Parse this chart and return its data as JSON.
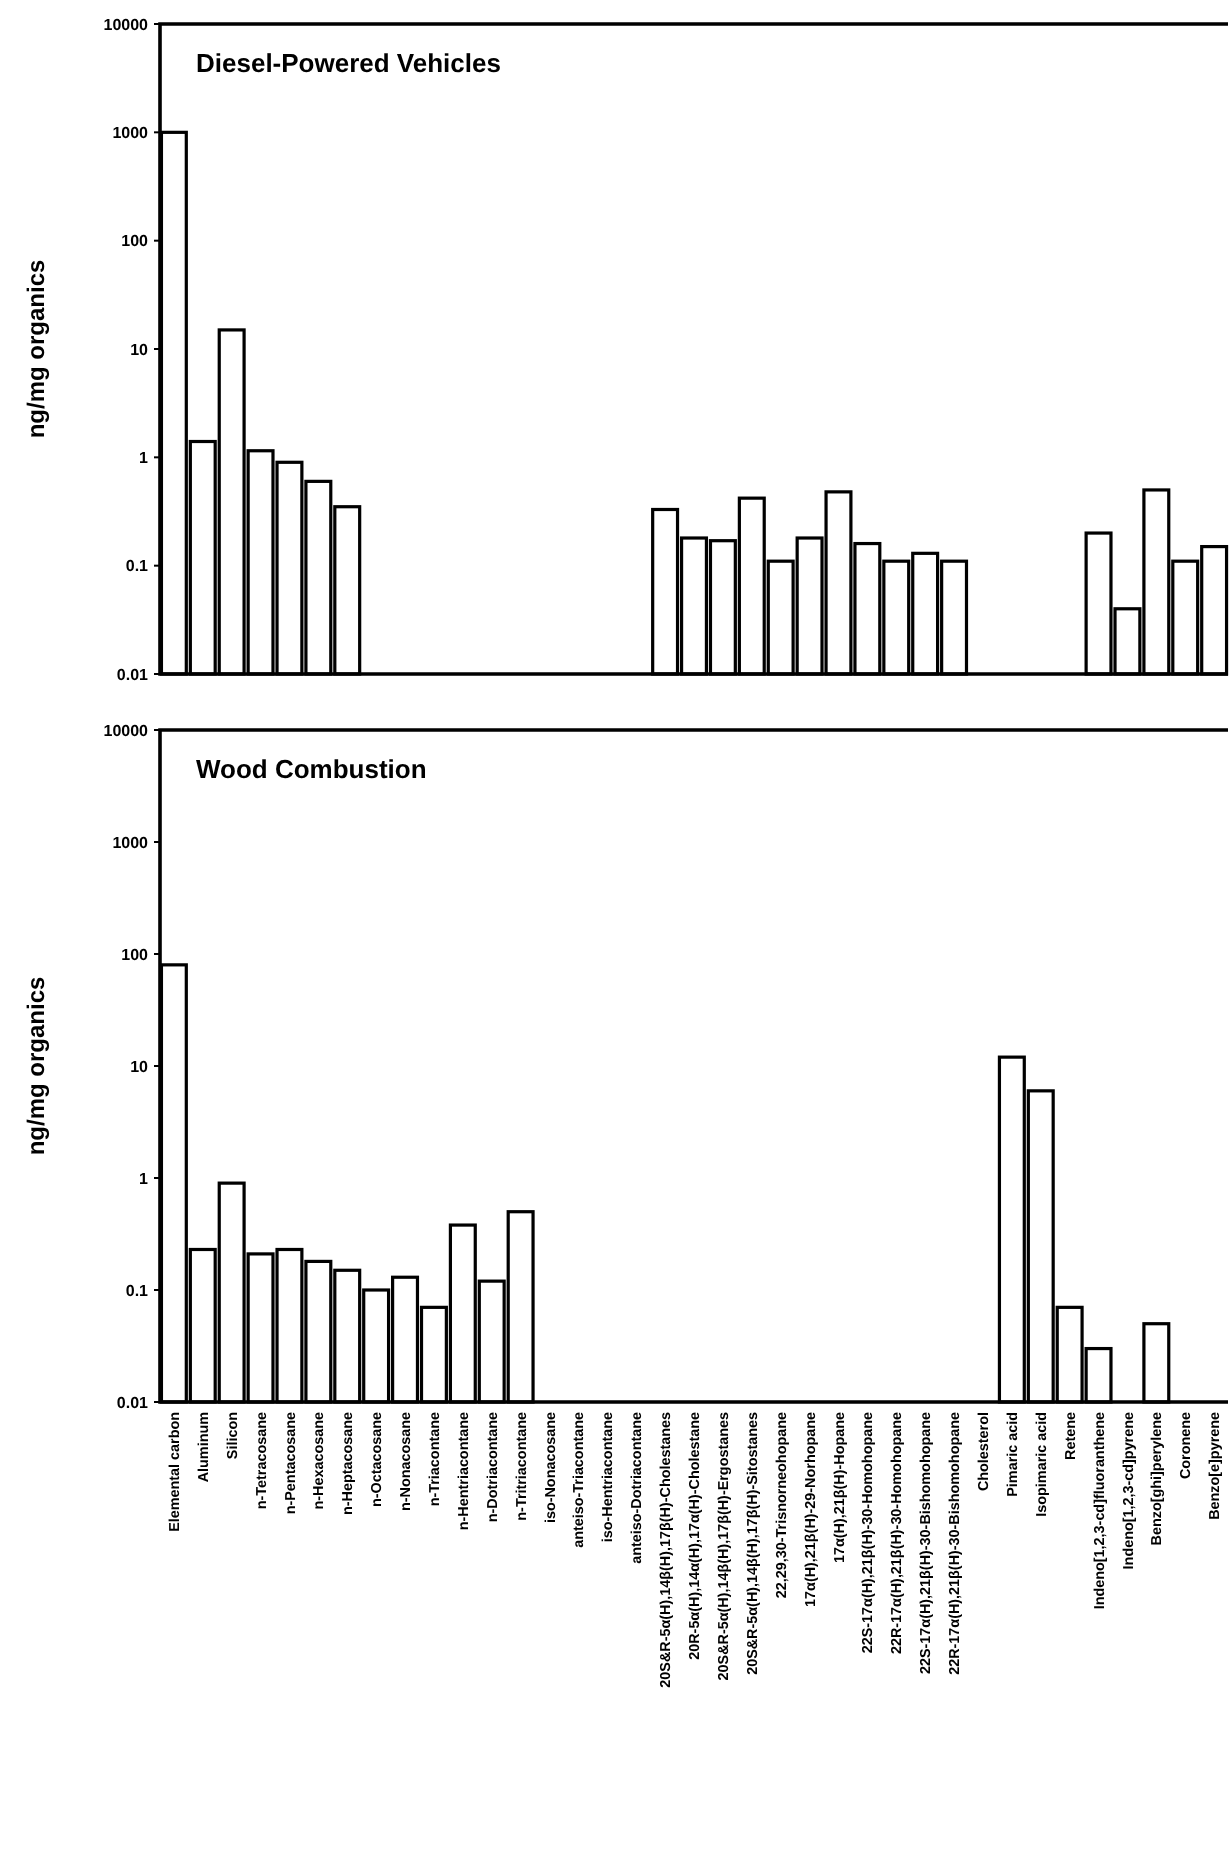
{
  "chart_data": [
    {
      "type": "bar",
      "title": "Diesel-Powered Vehicles",
      "ylabel": "ng/mg organics",
      "log": "y",
      "ylim": [
        0.01,
        10000
      ],
      "yticks": [
        0.01,
        0.1,
        1,
        10,
        100,
        1000,
        10000
      ],
      "color": "#ffffff",
      "categories": [
        null,
        null,
        null,
        null,
        null,
        null,
        null,
        null,
        null,
        null,
        null,
        null,
        null,
        null,
        null,
        null,
        null,
        null,
        null,
        null,
        null,
        null,
        null,
        null,
        null,
        null,
        null,
        null,
        null,
        null,
        null,
        null,
        null,
        null,
        null,
        null,
        null
      ],
      "values": [
        1000,
        1.4,
        15,
        1.15,
        0.9,
        0.6,
        0.35,
        null,
        null,
        null,
        null,
        null,
        null,
        null,
        null,
        null,
        null,
        0.33,
        0.18,
        0.17,
        0.42,
        0.11,
        0.18,
        0.48,
        0.16,
        0.11,
        0.13,
        0.11,
        null,
        null,
        null,
        null,
        0.2,
        0.04,
        0.5,
        0.11,
        0.15
      ]
    },
    {
      "type": "bar",
      "title": "Wood Combustion",
      "ylabel": "ng/mg organics",
      "log": "y",
      "ylim": [
        0.01,
        10000
      ],
      "yticks": [
        0.01,
        0.1,
        1,
        10,
        100,
        1000,
        10000
      ],
      "color": "#ffffff",
      "categories": [
        "Elemental carbon",
        "Aluminum",
        "Silicon",
        "n-Tetracosane",
        "n-Pentacosane",
        "n-Hexacosane",
        "n-Heptacosane",
        "n-Octacosane",
        "n-Nonacosane",
        "n-Triacontane",
        "n-Hentriacontane",
        "n-Dotriacontane",
        "n-Tritriacontane",
        "iso-Nonacosane",
        "anteiso-Triacontane",
        "iso-Hentriacontane",
        "anteiso-Dotriacontane",
        "20S&R-5α(H),14β(H),17β(H)-Cholestanes",
        "20R-5α(H),14α(H),17α(H)-Cholestane",
        "20S&R-5α(H),14β(H),17β(H)-Ergostanes",
        "20S&R-5α(H),14β(H),17β(H)-Sitostanes",
        "22,29,30-Trisnorneohopane",
        "17α(H),21β(H)-29-Norhopane",
        "17α(H),21β(H)-Hopane",
        "22S-17α(H),21β(H)-30-Homohopane",
        "22R-17α(H),21β(H)-30-Homohopane",
        "22S-17α(H),21β(H)-30-Bishomohopane",
        "22R-17α(H),21β(H)-30-Bishomohopane",
        "Cholesterol",
        "Pimaric acid",
        "Isopimaric acid",
        "Retene",
        "Indeno[1,2,3-cd]fluoranthene",
        "Indeno[1,2,3-cd]pyrene",
        "Benzo[ghi]perylene",
        "Coronene",
        "Benzo[e]pyrene"
      ],
      "values": [
        80,
        0.23,
        0.9,
        0.21,
        0.23,
        0.18,
        0.15,
        0.1,
        0.13,
        0.07,
        0.38,
        0.12,
        0.5,
        null,
        null,
        null,
        null,
        null,
        null,
        null,
        null,
        null,
        null,
        null,
        null,
        null,
        null,
        null,
        null,
        12,
        6,
        0.07,
        0.03,
        null,
        0.05,
        null,
        null
      ]
    }
  ]
}
